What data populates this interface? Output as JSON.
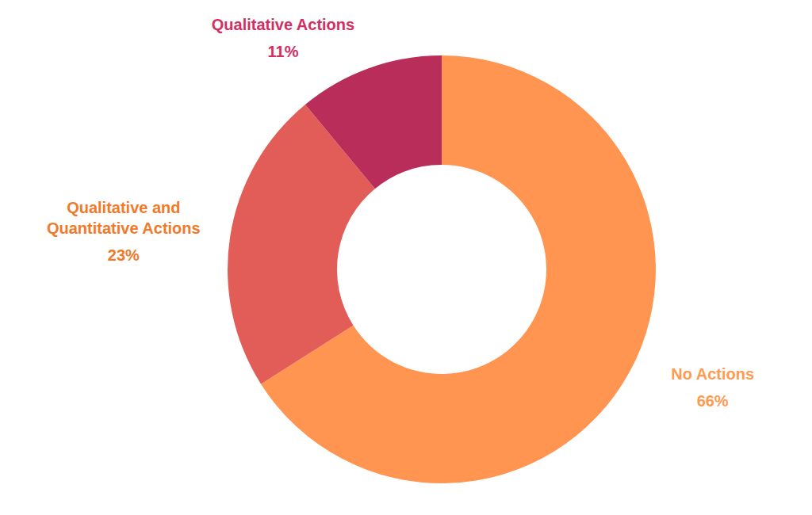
{
  "chart_data": {
    "type": "pie",
    "categories": [
      "No Actions",
      "Qualitative and Quantitative Actions",
      "Qualitative Actions"
    ],
    "values": [
      66,
      23,
      11
    ],
    "value_labels": [
      "66%",
      "23%",
      "11%"
    ],
    "colors": [
      "#FF9550",
      "#E35D58",
      "#B92D5A"
    ]
  }
}
